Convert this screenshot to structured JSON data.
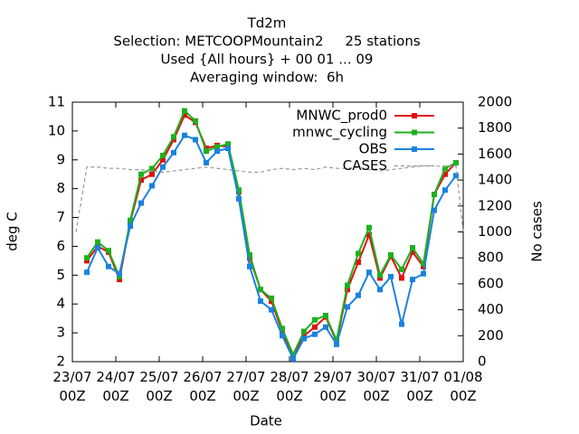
{
  "chart_data": {
    "type": "line",
    "title": [
      "Td2m",
      "Selection: METCOOPMountain2     25 stations",
      "Used {All hours} + 00 01 ... 09",
      "Averaging window:  6h"
    ],
    "xlabel": "Date",
    "ylabel": "deg C",
    "y2label": "No cases",
    "x": [
      8,
      14,
      20,
      26,
      32,
      38,
      44,
      50,
      56,
      62,
      68,
      74,
      80,
      86,
      92,
      98,
      104,
      110,
      116,
      122,
      128,
      134,
      140,
      146,
      152,
      158,
      164,
      170,
      176,
      182,
      188,
      194,
      200,
      206,
      212
    ],
    "xlim": [
      0,
      216
    ],
    "xticks": [
      {
        "value": 0,
        "label": "23/07\n00Z"
      },
      {
        "value": 24,
        "label": "24/07\n00Z"
      },
      {
        "value": 48,
        "label": "25/07\n00Z"
      },
      {
        "value": 72,
        "label": "26/07\n00Z"
      },
      {
        "value": 96,
        "label": "27/07\n00Z"
      },
      {
        "value": 120,
        "label": "28/07\n00Z"
      },
      {
        "value": 144,
        "label": "29/07\n00Z"
      },
      {
        "value": 168,
        "label": "30/07\n00Z"
      },
      {
        "value": 192,
        "label": "31/07\n00Z"
      },
      {
        "value": 216,
        "label": "01/08\n00Z"
      }
    ],
    "ylim": [
      2,
      11
    ],
    "yticks": [
      2,
      3,
      4,
      5,
      6,
      7,
      8,
      9,
      10,
      11
    ],
    "y2lim": [
      0,
      2000
    ],
    "y2ticks": [
      0,
      200,
      400,
      600,
      800,
      1000,
      1200,
      1400,
      1600,
      1800,
      2000
    ],
    "legend": "top-right",
    "grid": false,
    "series": [
      {
        "name": "MNWC_prod0",
        "color": "#e01010",
        "values": [
          5.5,
          6.0,
          5.8,
          4.85,
          6.85,
          8.3,
          8.5,
          9.0,
          9.7,
          10.55,
          10.3,
          9.4,
          9.5,
          9.45,
          7.9,
          5.6,
          4.5,
          4.1,
          3.05,
          2.2,
          2.9,
          3.2,
          3.55,
          2.7,
          4.5,
          5.45,
          6.4,
          4.9,
          5.65,
          4.9,
          5.8,
          5.3,
          7.8,
          8.5,
          8.9
        ]
      },
      {
        "name": "mnwc_cycling",
        "color": "#1eb01e",
        "values": [
          5.6,
          6.15,
          5.85,
          4.95,
          6.9,
          8.5,
          8.7,
          9.15,
          9.8,
          10.7,
          10.35,
          9.3,
          9.45,
          9.55,
          7.95,
          5.7,
          4.5,
          4.2,
          3.15,
          2.25,
          3.05,
          3.45,
          3.6,
          2.75,
          4.65,
          5.75,
          6.65,
          5.0,
          5.7,
          5.2,
          5.95,
          5.4,
          7.8,
          8.7,
          8.9
        ]
      },
      {
        "name": "OBS",
        "color": "#1a82e0",
        "values": [
          5.1,
          5.95,
          5.3,
          5.05,
          6.7,
          7.5,
          8.1,
          8.75,
          9.25,
          9.85,
          9.7,
          8.9,
          9.3,
          9.4,
          7.65,
          5.3,
          4.1,
          3.8,
          2.9,
          2.1,
          2.8,
          2.95,
          3.2,
          2.6,
          3.9,
          4.3,
          5.1,
          4.5,
          4.95,
          3.3,
          4.85,
          5.05,
          7.25,
          7.95,
          8.45
        ]
      },
      {
        "name": "CASES",
        "color": "#999999",
        "axis": "y2",
        "dashed": true,
        "x": [
          2,
          8,
          14,
          20,
          26,
          32,
          38,
          44,
          50,
          56,
          62,
          68,
          74,
          80,
          86,
          92,
          98,
          104,
          110,
          116,
          122,
          128,
          134,
          140,
          146,
          152,
          158,
          164,
          170,
          176,
          182,
          188,
          194,
          200,
          206,
          212,
          216
        ],
        "values": [
          1000,
          1500,
          1500,
          1490,
          1490,
          1480,
          1480,
          1470,
          1460,
          1470,
          1480,
          1490,
          1500,
          1490,
          1480,
          1470,
          1460,
          1460,
          1480,
          1490,
          1480,
          1490,
          1480,
          1500,
          1490,
          1490,
          1500,
          1480,
          1470,
          1480,
          1490,
          1500,
          1510,
          1510,
          1500,
          1510,
          1000
        ]
      }
    ]
  }
}
